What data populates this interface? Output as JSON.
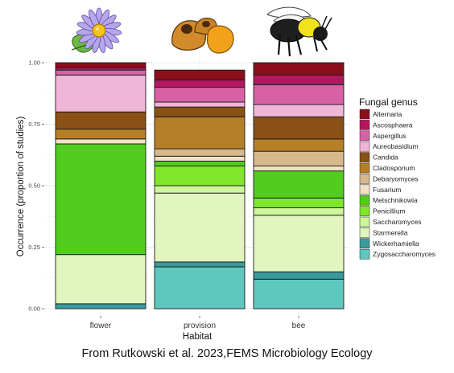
{
  "caption": "From Rutkowski et al. 2023,FEMS Microbiology Ecology",
  "chart_data": {
    "type": "bar",
    "stacked": true,
    "xlabel": "Habitat",
    "ylabel": "Occurrence (proportion of studies)",
    "ylim": [
      0,
      1
    ],
    "yticks": [
      "0.00",
      "0.25",
      "0.50",
      "0.75",
      "1.00"
    ],
    "categories": [
      "flower",
      "provision",
      "bee"
    ],
    "legend_title": "Fungal genus",
    "legend_position": "right",
    "grid": true,
    "series": [
      {
        "name": "Zygosaccharomyces",
        "color": "#5ec8bf",
        "values": [
          0.0,
          0.17,
          0.12
        ]
      },
      {
        "name": "Wickerhamiella",
        "color": "#3a9a9e",
        "values": [
          0.02,
          0.02,
          0.03
        ]
      },
      {
        "name": "Starmerella",
        "color": "#e2f5bf",
        "values": [
          0.2,
          0.28,
          0.23
        ]
      },
      {
        "name": "Saccharomyces",
        "color": "#cdf59a",
        "values": [
          0.0,
          0.03,
          0.03
        ]
      },
      {
        "name": "Penicillium",
        "color": "#7fe62c",
        "values": [
          0.0,
          0.08,
          0.04
        ]
      },
      {
        "name": "Metschnikowia",
        "color": "#52cc1e",
        "values": [
          0.45,
          0.02,
          0.11
        ]
      },
      {
        "name": "Fusarium",
        "color": "#f2e2c4",
        "values": [
          0.02,
          0.02,
          0.02
        ]
      },
      {
        "name": "Debaryomyces",
        "color": "#d6b88b",
        "values": [
          0.0,
          0.03,
          0.06
        ]
      },
      {
        "name": "Cladosporium",
        "color": "#b57f27",
        "values": [
          0.04,
          0.13,
          0.05
        ]
      },
      {
        "name": "Candida",
        "color": "#8a5117",
        "values": [
          0.07,
          0.04,
          0.09
        ]
      },
      {
        "name": "Aureobasidium",
        "color": "#f0b6d8",
        "values": [
          0.15,
          0.02,
          0.05
        ]
      },
      {
        "name": "Aspergillus",
        "color": "#d861a6",
        "values": [
          0.02,
          0.06,
          0.08
        ]
      },
      {
        "name": "Ascosphaera",
        "color": "#b5165f",
        "values": [
          0.01,
          0.03,
          0.04
        ]
      },
      {
        "name": "Alternaria",
        "color": "#8a0f1a",
        "values": [
          0.02,
          0.04,
          0.05
        ]
      }
    ],
    "legend_order": [
      "Alternaria",
      "Ascosphaera",
      "Aspergillus",
      "Aureobasidium",
      "Candida",
      "Cladosporium",
      "Debaryomyces",
      "Fusarium",
      "Metschnikowia",
      "Penicillium",
      "Saccharomyces",
      "Starmerella",
      "Wickerhamiella",
      "Zygosaccharomyces"
    ]
  },
  "icons": [
    "flower-icon",
    "pollen-provision-icon",
    "bee-icon"
  ]
}
